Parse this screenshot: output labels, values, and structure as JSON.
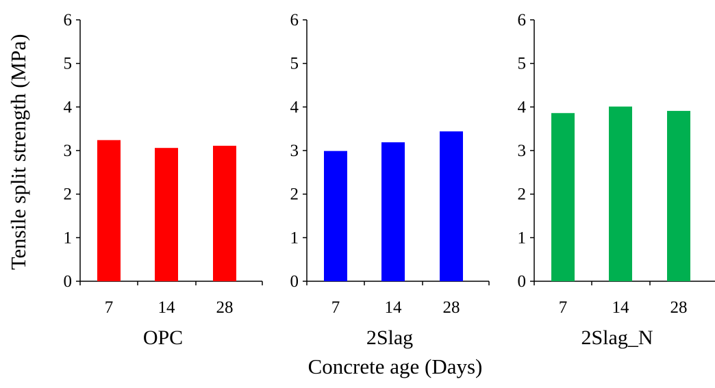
{
  "chart_data": {
    "type": "bar",
    "ylabel": "Tensile split strength (MPa)",
    "xlabel": "Concrete age (Days)",
    "ylim": [
      0,
      6
    ],
    "yticks": [
      "0",
      "1",
      "2",
      "3",
      "4",
      "5",
      "6"
    ],
    "categories": [
      "7",
      "14",
      "28"
    ],
    "grid": false,
    "legend": "none",
    "panels": [
      {
        "name": "OPC",
        "color": "#ff0000",
        "values": [
          3.24,
          3.06,
          3.11
        ]
      },
      {
        "name": "2Slag",
        "color": "#0000ff",
        "values": [
          2.99,
          3.19,
          3.44
        ]
      },
      {
        "name": "2Slag_N",
        "color": "#00b050",
        "values": [
          3.86,
          4.01,
          3.91
        ]
      }
    ]
  }
}
